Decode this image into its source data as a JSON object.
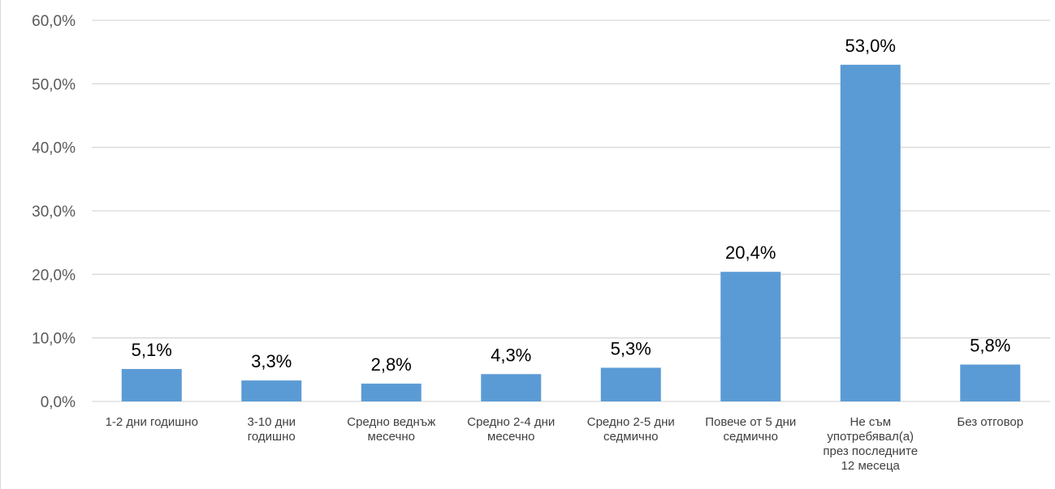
{
  "chart_data": {
    "type": "bar",
    "title": "",
    "xlabel": "",
    "ylabel": "",
    "ylim": [
      0,
      60
    ],
    "yticks": [
      0,
      10,
      20,
      30,
      40,
      50,
      60
    ],
    "ytick_labels": [
      "0,0%",
      "10,0%",
      "20,0%",
      "30,0%",
      "40,0%",
      "50,0%",
      "60,0%"
    ],
    "grid": true,
    "legend": "none",
    "categories": [
      [
        "1-2 дни годишно"
      ],
      [
        "3-10 дни",
        "годишно"
      ],
      [
        "Средно веднъж",
        "месечно"
      ],
      [
        "Средно 2-4 дни",
        "месечно"
      ],
      [
        "Средно 2-5 дни",
        "седмично"
      ],
      [
        "Повече от 5 дни",
        "седмично"
      ],
      [
        "Не съм",
        "употребявал(а)",
        "през последните",
        "12 месеца"
      ],
      [
        "Без отговор"
      ]
    ],
    "values": [
      5.1,
      3.3,
      2.8,
      4.3,
      5.3,
      20.4,
      53.0,
      5.8
    ],
    "data_labels": [
      "5,1%",
      "3,3%",
      "2,8%",
      "4,3%",
      "5,3%",
      "20,4%",
      "53,0%",
      "5,8%"
    ],
    "bar_color": "#5b9bd5",
    "grid_color": "#d9d9d9"
  }
}
